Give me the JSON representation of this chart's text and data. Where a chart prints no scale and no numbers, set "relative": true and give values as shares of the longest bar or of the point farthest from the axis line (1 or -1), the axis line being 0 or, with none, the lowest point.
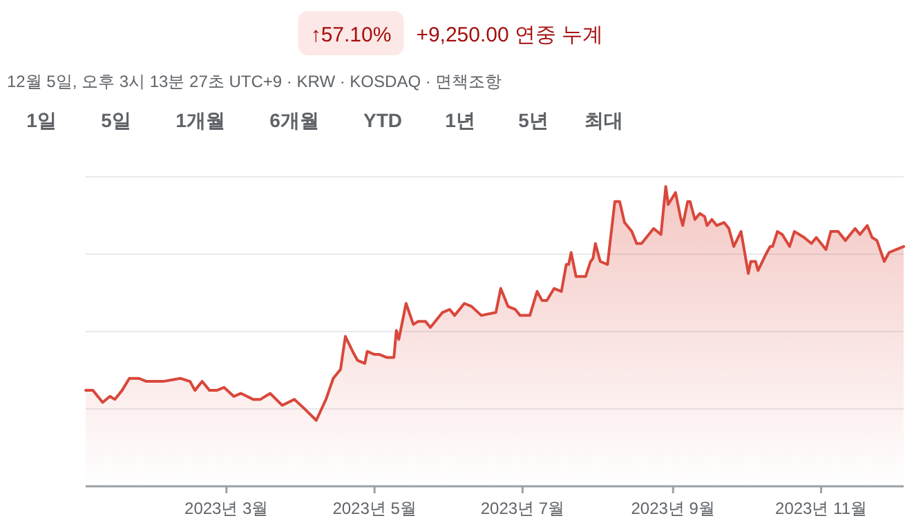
{
  "chart_data": {
    "type": "area",
    "title": "↑57.10%",
    "subtitle": "+9,250.00 연중 누계",
    "annotations": [
      "12월 5일, 오후 3시 13분 27초 UTC+9 · KRW · KOSDAQ · 면책조항",
      "1일",
      "5일",
      "1개월",
      "6개월",
      "YTD",
      "1년",
      "5년",
      "최대"
    ],
    "relative": true,
    "grid": "y",
    "xlim": [
      "2023-01-02",
      "2023-12-05"
    ],
    "xticks": [
      {
        "value": "2023-03-01",
        "label": "2023년 3월"
      },
      {
        "value": "2023-05-01",
        "label": "2023년 5월"
      },
      {
        "value": "2023-07-01",
        "label": "2023년 7월"
      },
      {
        "value": "2023-09-01",
        "label": "2023년 9월"
      },
      {
        "value": "2023-11-01",
        "label": "2023년 11월"
      }
    ],
    "series": [
      {
        "color": "#d9473b",
        "x": [
          "2023-01-02",
          "2023-01-05",
          "2023-01-09",
          "2023-01-12",
          "2023-01-14",
          "2023-01-17",
          "2023-01-20",
          "2023-01-24",
          "2023-01-27",
          "2023-01-31",
          "2023-02-03",
          "2023-02-10",
          "2023-02-14",
          "2023-02-16",
          "2023-02-19",
          "2023-02-22",
          "2023-02-25",
          "2023-02-28",
          "2023-03-04",
          "2023-03-07",
          "2023-03-12",
          "2023-03-15",
          "2023-03-19",
          "2023-03-24",
          "2023-03-29",
          "2023-04-02",
          "2023-04-07",
          "2023-04-11",
          "2023-04-14",
          "2023-04-17",
          "2023-04-19",
          "2023-04-22",
          "2023-04-24",
          "2023-04-27",
          "2023-04-28",
          "2023-05-01",
          "2023-05-03",
          "2023-05-06",
          "2023-05-09",
          "2023-05-10",
          "2023-05-11",
          "2023-05-14",
          "2023-05-17",
          "2023-05-19",
          "2023-05-22",
          "2023-05-24",
          "2023-05-29",
          "2023-06-01",
          "2023-06-03",
          "2023-06-07",
          "2023-06-10",
          "2023-06-14",
          "2023-06-20",
          "2023-06-22",
          "2023-06-25",
          "2023-06-28",
          "2023-06-30",
          "2023-07-04",
          "2023-07-07",
          "2023-07-09",
          "2023-07-11",
          "2023-07-14",
          "2023-07-17",
          "2023-07-19",
          "2023-07-20",
          "2023-07-21",
          "2023-07-23",
          "2023-07-27",
          "2023-07-29",
          "2023-07-30",
          "2023-07-31",
          "2023-08-02",
          "2023-08-05",
          "2023-08-08",
          "2023-08-10",
          "2023-08-12",
          "2023-08-15",
          "2023-08-17",
          "2023-08-19",
          "2023-08-22",
          "2023-08-24",
          "2023-08-27",
          "2023-08-29",
          "2023-08-30",
          "2023-09-02",
          "2023-09-04",
          "2023-09-05",
          "2023-09-07",
          "2023-09-08",
          "2023-09-10",
          "2023-09-12",
          "2023-09-14",
          "2023-09-15",
          "2023-09-17",
          "2023-09-19",
          "2023-09-22",
          "2023-09-24",
          "2023-09-26",
          "2023-09-29",
          "2023-10-02",
          "2023-10-03",
          "2023-10-05",
          "2023-10-06",
          "2023-10-09",
          "2023-10-11",
          "2023-10-12",
          "2023-10-14",
          "2023-10-16",
          "2023-10-19",
          "2023-10-21",
          "2023-10-25",
          "2023-10-28",
          "2023-10-30",
          "2023-11-01",
          "2023-11-03",
          "2023-11-05",
          "2023-11-08",
          "2023-11-11",
          "2023-11-15",
          "2023-11-17",
          "2023-11-18",
          "2023-11-20",
          "2023-11-22",
          "2023-11-24",
          "2023-11-27",
          "2023-11-29",
          "2023-12-02",
          "2023-12-05"
        ],
        "values": [
          0.32,
          0.32,
          0.28,
          0.3,
          0.29,
          0.32,
          0.36,
          0.36,
          0.35,
          0.35,
          0.35,
          0.36,
          0.35,
          0.32,
          0.35,
          0.32,
          0.32,
          0.33,
          0.3,
          0.31,
          0.29,
          0.29,
          0.31,
          0.27,
          0.29,
          0.26,
          0.22,
          0.29,
          0.36,
          0.39,
          0.5,
          0.45,
          0.42,
          0.41,
          0.45,
          0.44,
          0.44,
          0.43,
          0.43,
          0.52,
          0.49,
          0.61,
          0.54,
          0.55,
          0.55,
          0.53,
          0.58,
          0.59,
          0.57,
          0.61,
          0.6,
          0.57,
          0.58,
          0.66,
          0.6,
          0.59,
          0.57,
          0.57,
          0.65,
          0.62,
          0.62,
          0.66,
          0.65,
          0.74,
          0.74,
          0.78,
          0.7,
          0.7,
          0.75,
          0.76,
          0.81,
          0.75,
          0.74,
          0.95,
          0.95,
          0.88,
          0.85,
          0.81,
          0.81,
          0.84,
          0.86,
          0.84,
          1.0,
          0.94,
          0.98,
          0.9,
          0.87,
          0.95,
          0.95,
          0.89,
          0.91,
          0.9,
          0.87,
          0.89,
          0.87,
          0.88,
          0.86,
          0.8,
          0.85,
          0.71,
          0.75,
          0.75,
          0.72,
          0.77,
          0.8,
          0.8,
          0.85,
          0.84,
          0.8,
          0.85,
          0.83,
          0.81,
          0.83,
          0.81,
          0.79,
          0.85,
          0.85,
          0.82,
          0.86,
          0.84,
          0.85,
          0.87,
          0.83,
          0.82,
          0.75,
          0.78,
          0.79,
          0.8
        ]
      }
    ]
  }
}
